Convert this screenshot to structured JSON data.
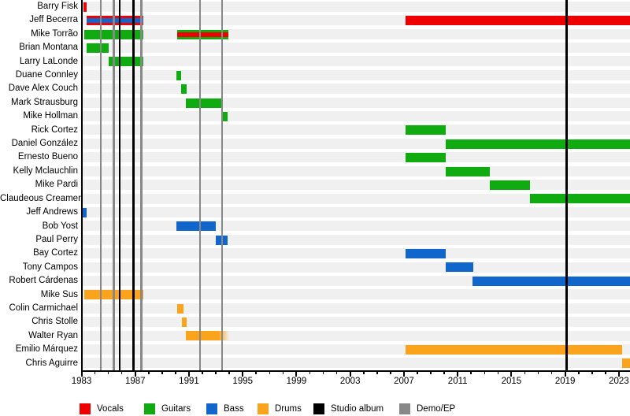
{
  "chart_data": {
    "type": "timeline",
    "title": "",
    "x_axis": {
      "start_year": 1983,
      "end_year": 2024,
      "major_tick_step": 4,
      "major_tick_labels": [
        1983,
        1987,
        1991,
        1995,
        1999,
        2003,
        2007,
        2011,
        2015,
        2019,
        2023
      ],
      "minor_tick_step": 1
    },
    "colors": {
      "vocals": "#ee0000",
      "guitars": "#10ab10",
      "bass": "#1166cc",
      "drums": "#faa41e",
      "studio_album": "#000000",
      "demo_ep": "#888888",
      "row_stripe": "#f0f0f0",
      "axis": "#000000"
    },
    "members": [
      {
        "name": "Barry Fisk",
        "bars": [
          {
            "start": 1983.15,
            "end": 1983.4,
            "role": "vocals"
          }
        ]
      },
      {
        "name": "Jeff Becerra",
        "bars": [
          {
            "start": 1983.4,
            "end": 1987.6,
            "role": "vocals",
            "stripe": "bass"
          },
          {
            "start": 2007.1,
            "end": 2024.2,
            "role": "vocals"
          }
        ]
      },
      {
        "name": "Mike Torrão",
        "bars": [
          {
            "start": 1983.2,
            "end": 1987.6,
            "role": "guitars"
          },
          {
            "start": 1990.1,
            "end": 1993.95,
            "role": "guitars",
            "stripe": "vocals"
          }
        ]
      },
      {
        "name": "Brian Montana",
        "bars": [
          {
            "start": 1983.4,
            "end": 1985.05,
            "role": "guitars"
          }
        ]
      },
      {
        "name": "Larry LaLonde",
        "bars": [
          {
            "start": 1985.05,
            "end": 1987.6,
            "role": "guitars"
          }
        ]
      },
      {
        "name": "Duane Connley",
        "bars": [
          {
            "start": 1990.05,
            "end": 1990.4,
            "role": "guitars"
          }
        ]
      },
      {
        "name": "Dave Alex Couch",
        "bars": [
          {
            "start": 1990.4,
            "end": 1990.8,
            "role": "guitars"
          }
        ]
      },
      {
        "name": "Mark Strausburg",
        "bars": [
          {
            "start": 1990.75,
            "end": 1993.55,
            "role": "guitars"
          }
        ]
      },
      {
        "name": "Mike Hollman",
        "bars": [
          {
            "start": 1993.5,
            "end": 1993.9,
            "role": "guitars"
          }
        ]
      },
      {
        "name": "Rick Cortez",
        "bars": [
          {
            "start": 2007.1,
            "end": 2010.1,
            "role": "guitars"
          }
        ]
      },
      {
        "name": "Daniel González",
        "bars": [
          {
            "start": 2010.1,
            "end": 2024.2,
            "role": "guitars"
          }
        ]
      },
      {
        "name": "Ernesto Bueno",
        "bars": [
          {
            "start": 2007.1,
            "end": 2010.1,
            "role": "guitars"
          }
        ]
      },
      {
        "name": "Kelly Mclauchlin",
        "bars": [
          {
            "start": 2010.1,
            "end": 2013.4,
            "role": "guitars"
          }
        ]
      },
      {
        "name": "Mike Pardi",
        "bars": [
          {
            "start": 2013.4,
            "end": 2016.4,
            "role": "guitars"
          }
        ]
      },
      {
        "name": "Claudeous Creamer",
        "bars": [
          {
            "start": 2016.4,
            "end": 2024.2,
            "role": "guitars"
          }
        ]
      },
      {
        "name": "Jeff Andrews",
        "bars": [
          {
            "start": 1983.05,
            "end": 1983.4,
            "role": "bass"
          }
        ]
      },
      {
        "name": "Bob Yost",
        "bars": [
          {
            "start": 1990.05,
            "end": 1993.0,
            "role": "bass"
          }
        ]
      },
      {
        "name": "Paul Perry",
        "bars": [
          {
            "start": 1993.0,
            "end": 1993.85,
            "role": "bass"
          }
        ]
      },
      {
        "name": "Bay Cortez",
        "bars": [
          {
            "start": 2007.1,
            "end": 2010.1,
            "role": "bass"
          }
        ]
      },
      {
        "name": "Tony Campos",
        "bars": [
          {
            "start": 2010.1,
            "end": 2012.15,
            "role": "bass"
          }
        ]
      },
      {
        "name": "Robert Cárdenas",
        "bars": [
          {
            "start": 2012.1,
            "end": 2024.2,
            "role": "bass"
          }
        ]
      },
      {
        "name": "Mike Sus",
        "bars": [
          {
            "start": 1983.2,
            "end": 1987.6,
            "role": "drums"
          }
        ]
      },
      {
        "name": "Colin Carmichael",
        "bars": [
          {
            "start": 1990.1,
            "end": 1990.6,
            "role": "drums"
          }
        ]
      },
      {
        "name": "Chris Stolle",
        "bars": [
          {
            "start": 1990.45,
            "end": 1990.8,
            "role": "drums"
          }
        ]
      },
      {
        "name": "Walter Ryan",
        "bars": [
          {
            "start": 1990.75,
            "end": 1994.0,
            "role": "drums",
            "fade_end": true
          }
        ]
      },
      {
        "name": "Emilio Márquez",
        "bars": [
          {
            "start": 2007.1,
            "end": 2023.25,
            "role": "drums"
          }
        ]
      },
      {
        "name": "Chris Aguirre",
        "bars": [
          {
            "start": 2023.25,
            "end": 2024.2,
            "role": "drums"
          }
        ]
      }
    ],
    "events": [
      {
        "year": 1984.45,
        "kind": "demo_ep"
      },
      {
        "year": 1985.4,
        "kind": "demo_ep"
      },
      {
        "year": 1985.82,
        "kind": "studio_album"
      },
      {
        "year": 1986.85,
        "kind": "studio_album"
      },
      {
        "year": 1987.45,
        "kind": "demo_ep"
      },
      {
        "year": 1991.8,
        "kind": "demo_ep"
      },
      {
        "year": 1993.45,
        "kind": "demo_ep"
      },
      {
        "year": 2019.1,
        "kind": "studio_album"
      }
    ],
    "legend": {
      "position": "bottom",
      "entries": [
        {
          "label": "Vocals",
          "color_key": "vocals"
        },
        {
          "label": "Guitars",
          "color_key": "guitars"
        },
        {
          "label": "Bass",
          "color_key": "bass"
        },
        {
          "label": "Drums",
          "color_key": "drums"
        },
        {
          "label": "Studio album",
          "color_key": "studio_album"
        },
        {
          "label": "Demo/EP",
          "color_key": "demo_ep"
        }
      ]
    }
  }
}
